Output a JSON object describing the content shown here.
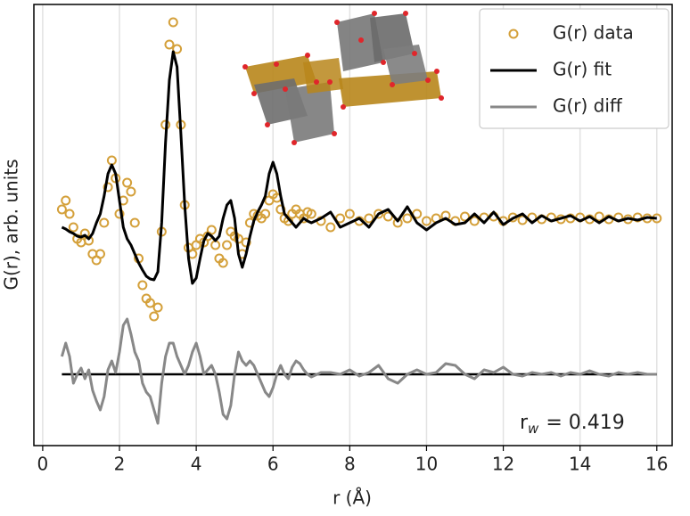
{
  "chart_data": {
    "type": "line",
    "xlabel": "r (Å)",
    "ylabel": "G(r), arb. units",
    "xlim": [
      -0.23,
      16.4
    ],
    "ylim": [
      -0.8,
      4.15
    ],
    "xticks": [
      0,
      2,
      4,
      6,
      8,
      10,
      12,
      14,
      16
    ],
    "grid": true,
    "legend": "upper right",
    "baseline": 0,
    "annotation": {
      "symbol": "r",
      "subscript": "w",
      "text": "= 0.419"
    },
    "x": [
      0.5,
      0.6,
      0.7,
      0.8,
      0.9,
      1.0,
      1.1,
      1.2,
      1.3,
      1.4,
      1.5,
      1.6,
      1.7,
      1.8,
      1.9,
      2.0,
      2.1,
      2.2,
      2.3,
      2.4,
      2.5,
      2.6,
      2.7,
      2.8,
      2.9,
      3.0,
      3.1,
      3.2,
      3.3,
      3.4,
      3.5,
      3.6,
      3.7,
      3.8,
      3.9,
      4.0,
      4.1,
      4.2,
      4.3,
      4.4,
      4.5,
      4.6,
      4.7,
      4.8,
      4.9,
      5.0,
      5.1,
      5.2,
      5.3,
      5.4,
      5.5,
      5.6,
      5.7,
      5.8,
      5.9,
      6.0,
      6.1,
      6.2,
      6.3,
      6.4,
      6.5,
      6.6,
      6.7,
      6.8,
      6.9,
      7.0,
      7.25,
      7.5,
      7.75,
      8.0,
      8.25,
      8.5,
      8.75,
      9.0,
      9.25,
      9.5,
      9.75,
      10.0,
      10.25,
      10.5,
      10.75,
      11.0,
      11.25,
      11.5,
      11.75,
      12.0,
      12.25,
      12.5,
      12.75,
      13.0,
      13.25,
      13.5,
      13.75,
      14.0,
      14.25,
      14.5,
      14.75,
      15.0,
      15.25,
      15.5,
      15.75,
      16.0
    ],
    "series": [
      {
        "name": "G(r) data",
        "color": "#d4a03a",
        "marker": "circle",
        "values": [
          1.85,
          1.95,
          1.8,
          1.65,
          1.52,
          1.48,
          1.58,
          1.5,
          1.35,
          1.28,
          1.35,
          1.7,
          2.1,
          2.4,
          2.2,
          1.8,
          1.95,
          2.15,
          2.05,
          1.7,
          1.3,
          1.0,
          0.85,
          0.8,
          0.65,
          0.75,
          1.6,
          2.8,
          3.7,
          3.95,
          3.65,
          2.8,
          1.9,
          1.42,
          1.35,
          1.45,
          1.52,
          1.48,
          1.55,
          1.62,
          1.45,
          1.3,
          1.25,
          1.45,
          1.6,
          1.55,
          1.52,
          1.35,
          1.48,
          1.7,
          1.8,
          1.78,
          1.75,
          1.8,
          1.95,
          2.02,
          1.98,
          1.85,
          1.75,
          1.72,
          1.8,
          1.85,
          1.8,
          1.75,
          1.82,
          1.8,
          1.72,
          1.65,
          1.75,
          1.8,
          1.72,
          1.75,
          1.8,
          1.77,
          1.7,
          1.75,
          1.8,
          1.72,
          1.75,
          1.78,
          1.72,
          1.77,
          1.72,
          1.76,
          1.77,
          1.72,
          1.76,
          1.73,
          1.76,
          1.74,
          1.76,
          1.74,
          1.75,
          1.76,
          1.74,
          1.77,
          1.74,
          1.76,
          1.74,
          1.76,
          1.75,
          1.75
        ]
      },
      {
        "name": "G(r) fit",
        "color": "#000000",
        "marker": "line",
        "values": [
          1.65,
          1.63,
          1.6,
          1.58,
          1.55,
          1.54,
          1.56,
          1.52,
          1.58,
          1.7,
          1.8,
          2.0,
          2.25,
          2.35,
          2.25,
          1.95,
          1.65,
          1.52,
          1.45,
          1.35,
          1.25,
          1.17,
          1.1,
          1.07,
          1.06,
          1.15,
          1.7,
          2.6,
          3.3,
          3.62,
          3.45,
          2.7,
          1.9,
          1.3,
          1.02,
          1.08,
          1.3,
          1.5,
          1.58,
          1.55,
          1.5,
          1.55,
          1.75,
          1.9,
          1.95,
          1.75,
          1.35,
          1.2,
          1.35,
          1.55,
          1.72,
          1.82,
          1.9,
          2.0,
          2.25,
          2.38,
          2.25,
          2.0,
          1.8,
          1.75,
          1.7,
          1.65,
          1.7,
          1.75,
          1.72,
          1.7,
          1.75,
          1.82,
          1.65,
          1.7,
          1.75,
          1.65,
          1.8,
          1.85,
          1.72,
          1.88,
          1.7,
          1.62,
          1.7,
          1.75,
          1.68,
          1.7,
          1.8,
          1.7,
          1.82,
          1.68,
          1.75,
          1.8,
          1.7,
          1.78,
          1.72,
          1.75,
          1.78,
          1.72,
          1.77,
          1.7,
          1.77,
          1.72,
          1.75,
          1.73,
          1.76,
          1.75
        ]
      },
      {
        "name": "G(r) diff",
        "color": "#888888",
        "marker": "line",
        "values": [
          0.2,
          0.35,
          0.2,
          -0.1,
          0,
          0.07,
          -0.05,
          0.05,
          -0.18,
          -0.3,
          -0.4,
          -0.25,
          0.05,
          0.15,
          0.02,
          0.25,
          0.55,
          0.62,
          0.45,
          0.25,
          0.15,
          -0.1,
          -0.2,
          -0.25,
          -0.4,
          -0.55,
          -0.1,
          0.2,
          0.35,
          0.35,
          0.2,
          0.1,
          0,
          0.1,
          0.25,
          0.35,
          0.2,
          0,
          0.05,
          0.1,
          0,
          -0.2,
          -0.45,
          -0.5,
          -0.35,
          0,
          0.25,
          0.15,
          0.1,
          0.15,
          0.1,
          0,
          -0.1,
          -0.2,
          -0.25,
          -0.15,
          0,
          0.1,
          0,
          -0.05,
          0.08,
          0.15,
          0.12,
          0.05,
          0,
          -0.03,
          0.02,
          0.02,
          0,
          0.05,
          -0.02,
          0.02,
          0.1,
          -0.05,
          -0.1,
          0,
          0.05,
          0,
          0.02,
          0.12,
          0.1,
          0,
          -0.05,
          0.05,
          0.02,
          0.08,
          0,
          -0.02,
          0.02,
          0,
          0.02,
          -0.02,
          0.02,
          0,
          0.04,
          0,
          -0.02,
          0.02,
          0,
          0.02,
          0,
          0
        ]
      }
    ]
  }
}
